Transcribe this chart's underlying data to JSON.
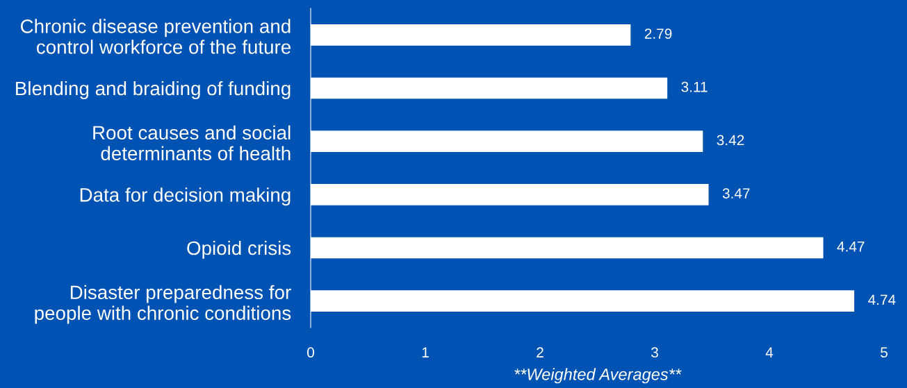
{
  "chart_data": {
    "type": "bar",
    "orientation": "horizontal",
    "xlabel": "**Weighted Averages**",
    "categories": [
      "Chronic disease prevention and\ncontrol workforce of the future",
      "Blending and braiding of funding",
      "Root causes and social\ndeterminants of health",
      "Data for decision making",
      "Opioid crisis",
      "Disaster preparedness for\npeople with chronic conditions"
    ],
    "values": [
      2.79,
      3.11,
      3.42,
      3.47,
      4.47,
      4.74
    ],
    "color": "#ffffff",
    "xlim": [
      0,
      5
    ],
    "xticks": [
      0,
      1,
      2,
      3,
      4,
      5
    ],
    "data_labels": true,
    "grid": false,
    "legend": false
  }
}
